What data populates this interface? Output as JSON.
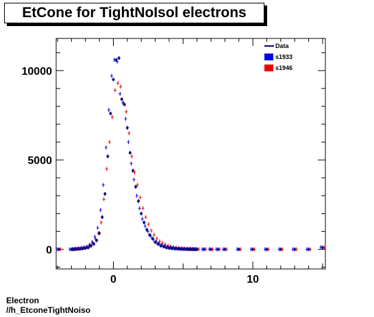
{
  "footer": {
    "line1": "Electron",
    "line2": "//h_EtconeTightNoiso"
  },
  "chart_data": {
    "type": "scatter",
    "title": "EtCone for TightNoIsol electrons",
    "xlabel": "",
    "ylabel": "",
    "xlim": [
      -4.1,
      15.2
    ],
    "ylim": [
      -1100,
      11800
    ],
    "x_ticks": [
      0,
      10
    ],
    "y_ticks": [
      0,
      5000,
      10000
    ],
    "grid": false,
    "legend_position": "top-right",
    "series_colors": {
      "Data": "#000080",
      "s1933": "#0000ee",
      "s1946": "#ee0000"
    },
    "legend": [
      {
        "name": "Data",
        "style": "line",
        "color": "#000080"
      },
      {
        "name": "s1933",
        "style": "box",
        "color": "#0000ee"
      },
      {
        "name": "s1946",
        "style": "box",
        "color": "#ee0000"
      }
    ],
    "x": [
      -3.9,
      -3.0,
      -2.8,
      -2.6,
      -2.4,
      -2.2,
      -2.0,
      -1.8,
      -1.6,
      -1.4,
      -1.2,
      -1.0,
      -0.8,
      -0.6,
      -0.4,
      -0.2,
      0.0,
      0.2,
      0.4,
      0.6,
      0.8,
      1.0,
      1.2,
      1.4,
      1.6,
      1.8,
      2.0,
      2.2,
      2.4,
      2.6,
      2.8,
      3.0,
      3.2,
      3.4,
      3.6,
      3.8,
      4.0,
      4.2,
      4.4,
      4.6,
      4.8,
      5.0,
      5.2,
      5.4,
      5.6,
      5.8,
      6.0,
      6.5,
      7.0,
      7.5,
      8.0,
      9.0,
      10.0,
      11.0,
      12.0,
      13.0,
      14.0,
      15.0
    ],
    "series": [
      {
        "name": "Data",
        "values": [
          0,
          0,
          10,
          20,
          30,
          50,
          70,
          100,
          200,
          300,
          500,
          900,
          1800,
          3100,
          5200,
          7600,
          9500,
          10600,
          10700,
          8400,
          8100,
          6800,
          5400,
          4400,
          3500,
          2700,
          2000,
          1500,
          1100,
          800,
          600,
          400,
          300,
          200,
          150,
          100,
          70,
          50,
          40,
          30,
          20,
          15,
          10,
          8,
          5,
          4,
          3,
          2,
          2,
          1,
          1,
          1,
          0,
          0,
          0,
          0,
          0,
          100
        ]
      },
      {
        "name": "s1933",
        "values": [
          0,
          0,
          15,
          25,
          40,
          60,
          90,
          130,
          250,
          400,
          700,
          1200,
          2200,
          3600,
          5700,
          7800,
          9700,
          10600,
          10500,
          8700,
          8200,
          7300,
          6000,
          4800,
          3900,
          3000,
          2300,
          1700,
          1300,
          1000,
          750,
          550,
          420,
          310,
          240,
          180,
          130,
          100,
          80,
          60,
          45,
          35,
          25,
          20,
          15,
          10,
          8,
          5,
          4,
          3,
          2,
          2,
          1,
          1,
          0,
          0,
          0,
          120
        ]
      },
      {
        "name": "s1946",
        "values": [
          0,
          0,
          20,
          40,
          60,
          90,
          130,
          200,
          350,
          550,
          900,
          1500,
          2800,
          4500,
          6000,
          7400,
          8900,
          9300,
          9100,
          8200,
          7700,
          6500,
          5200,
          4300,
          3600,
          2900,
          2300,
          1800,
          1400,
          1050,
          800,
          600,
          450,
          350,
          270,
          200,
          150,
          110,
          80,
          60,
          45,
          35,
          25,
          18,
          12,
          9,
          7,
          5,
          4,
          3,
          2,
          2,
          1,
          1,
          0,
          0,
          0,
          80
        ]
      }
    ]
  }
}
